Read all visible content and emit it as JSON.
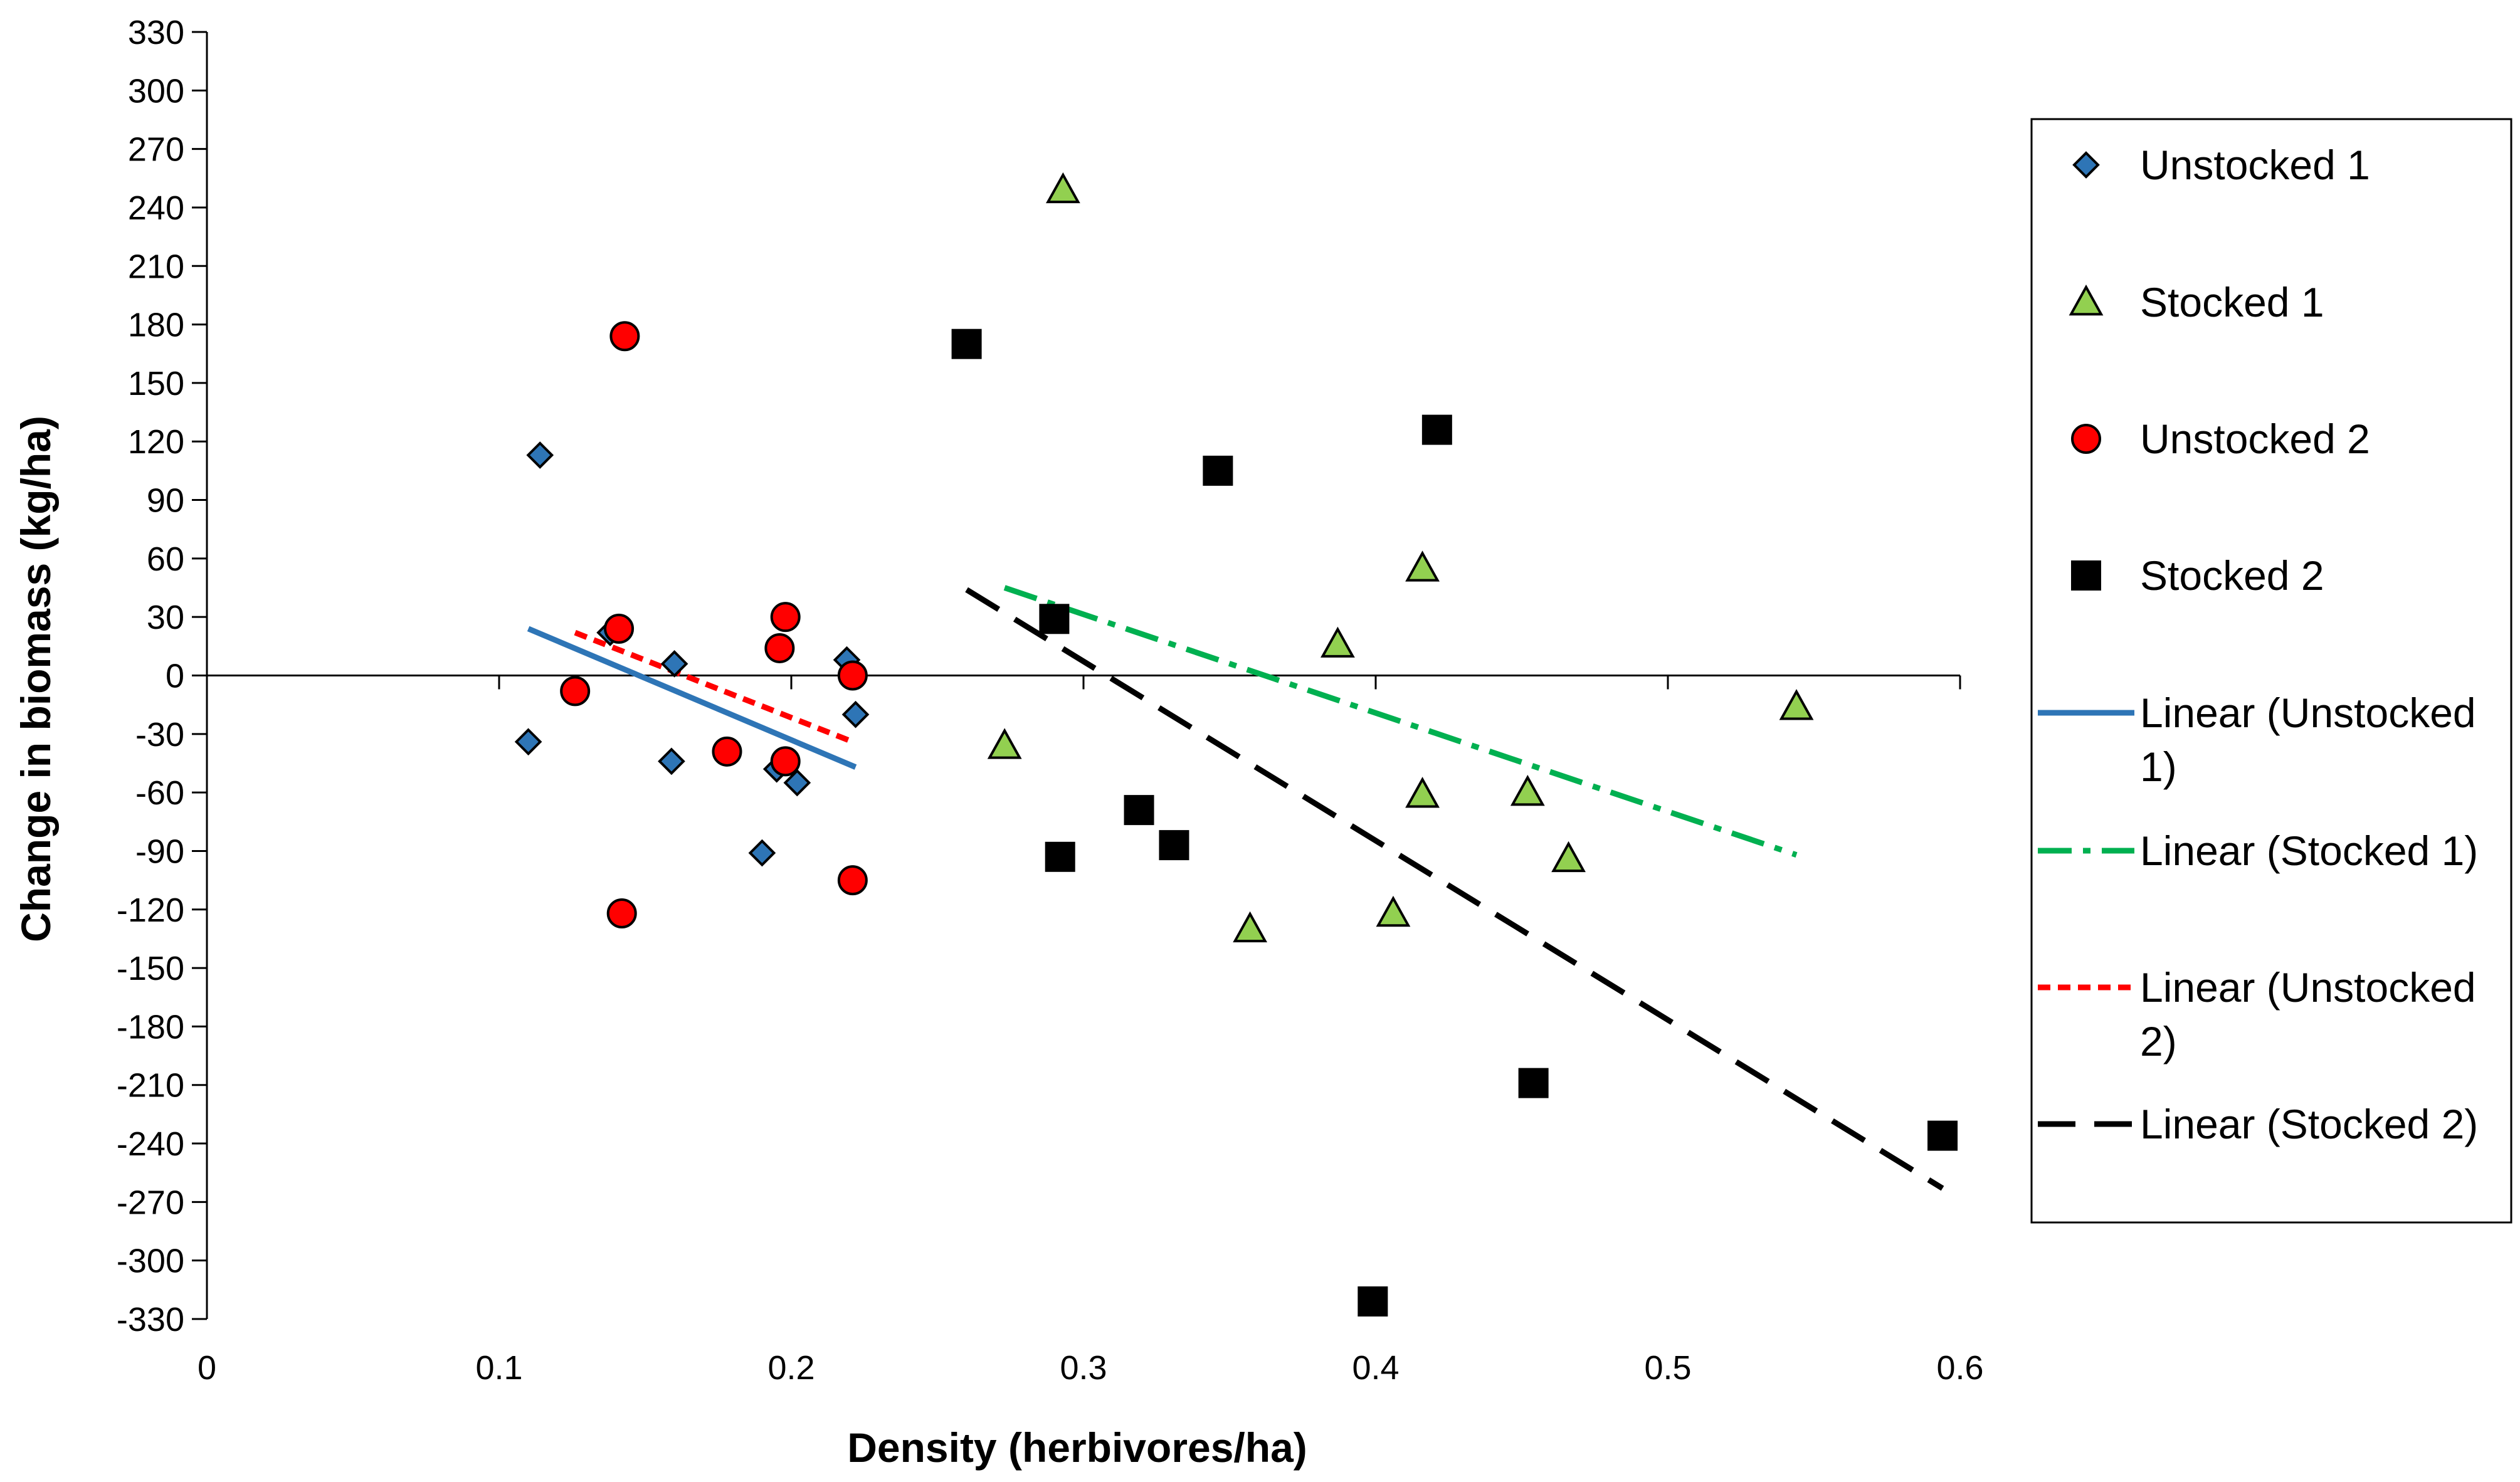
{
  "chart_data": {
    "type": "scatter",
    "title": "",
    "xlabel": "Density (herbivores/ha)",
    "ylabel": "Change in biomass (kg/ha)",
    "xlim": [
      0,
      0.6
    ],
    "ylim": [
      -330,
      330
    ],
    "x_ticks": [
      0,
      0.1,
      0.2,
      0.3,
      0.4,
      0.5,
      0.6
    ],
    "x_tick_labels": [
      "0",
      "0.1",
      "0.2",
      "0.3",
      "0.4",
      "0.5",
      "0.6"
    ],
    "y_ticks": [
      -330,
      -300,
      -270,
      -240,
      -210,
      -180,
      -150,
      -120,
      -90,
      -60,
      -30,
      0,
      30,
      60,
      90,
      120,
      150,
      180,
      210,
      240,
      270,
      300,
      330
    ],
    "y_tick_labels": [
      "-330",
      "-300",
      "-270",
      "-240",
      "-210",
      "-180",
      "-150",
      "-120",
      "-90",
      "-60",
      "-30",
      "0",
      "30",
      "60",
      "90",
      "120",
      "150",
      "180",
      "210",
      "240",
      "270",
      "300",
      "330"
    ],
    "grid": false,
    "legend_position": "right",
    "series": [
      {
        "name": "Unstocked 1",
        "marker": "diamond",
        "color": "#2E75B6",
        "points": [
          [
            0.114,
            113
          ],
          [
            0.11,
            -34
          ],
          [
            0.138,
            22
          ],
          [
            0.16,
            6
          ],
          [
            0.159,
            -44
          ],
          [
            0.19,
            -91
          ],
          [
            0.195,
            -48
          ],
          [
            0.202,
            -55
          ],
          [
            0.219,
            8
          ],
          [
            0.222,
            -20
          ]
        ]
      },
      {
        "name": "Stocked 1",
        "marker": "triangle",
        "color": "#92D050",
        "points": [
          [
            0.293,
            249
          ],
          [
            0.273,
            -36
          ],
          [
            0.357,
            -130
          ],
          [
            0.387,
            16
          ],
          [
            0.406,
            -122
          ],
          [
            0.416,
            55
          ],
          [
            0.416,
            -61
          ],
          [
            0.452,
            -60
          ],
          [
            0.466,
            -94
          ],
          [
            0.544,
            -16
          ]
        ]
      },
      {
        "name": "Unstocked 2",
        "marker": "circle",
        "color": "#FF0000",
        "points": [
          [
            0.143,
            174
          ],
          [
            0.141,
            24
          ],
          [
            0.126,
            -8
          ],
          [
            0.142,
            -122
          ],
          [
            0.178,
            -39
          ],
          [
            0.196,
            14
          ],
          [
            0.198,
            30
          ],
          [
            0.198,
            -44
          ],
          [
            0.221,
            0
          ],
          [
            0.221,
            -105
          ]
        ]
      },
      {
        "name": "Stocked 2",
        "marker": "square",
        "color": "#000000",
        "points": [
          [
            0.26,
            170
          ],
          [
            0.29,
            29
          ],
          [
            0.292,
            -93
          ],
          [
            0.319,
            -69
          ],
          [
            0.331,
            -87
          ],
          [
            0.346,
            105
          ],
          [
            0.399,
            -321
          ],
          [
            0.421,
            126
          ],
          [
            0.454,
            -209
          ],
          [
            0.594,
            -236
          ]
        ]
      }
    ],
    "trendlines": [
      {
        "name": "Linear (Unstocked 1)",
        "style": "solid",
        "color": "#2E75B6",
        "start": [
          0.11,
          24
        ],
        "end": [
          0.222,
          -47
        ]
      },
      {
        "name": "Linear (Stocked 1)",
        "style": "dashdot",
        "color": "#00B050",
        "start": [
          0.273,
          45
        ],
        "end": [
          0.544,
          -92
        ]
      },
      {
        "name": "Linear (Unstocked 2)",
        "style": "dotted",
        "color": "#FF0000",
        "start": [
          0.126,
          22
        ],
        "end": [
          0.221,
          -34
        ]
      },
      {
        "name": "Linear (Stocked 2)",
        "style": "longdash",
        "color": "#000000",
        "start": [
          0.26,
          44
        ],
        "end": [
          0.594,
          -263
        ]
      }
    ],
    "legend": [
      {
        "label": "Unstocked 1",
        "kind": "marker",
        "marker": "diamond",
        "color": "#2E75B6"
      },
      {
        "label": "Stocked 1",
        "kind": "marker",
        "marker": "triangle",
        "color": "#92D050"
      },
      {
        "label": "Unstocked 2",
        "kind": "marker",
        "marker": "circle",
        "color": "#FF0000"
      },
      {
        "label": "Stocked 2",
        "kind": "marker",
        "marker": "square",
        "color": "#000000"
      },
      {
        "label_lines": [
          "Linear (Unstocked",
          "1)"
        ],
        "kind": "line",
        "style": "solid",
        "color": "#2E75B6"
      },
      {
        "label_lines": [
          "Linear (Stocked 1)"
        ],
        "kind": "line",
        "style": "dashdot",
        "color": "#00B050"
      },
      {
        "label_lines": [
          "Linear (Unstocked",
          "2)"
        ],
        "kind": "line",
        "style": "dotted",
        "color": "#FF0000"
      },
      {
        "label_lines": [
          "Linear (Stocked 2)"
        ],
        "kind": "line",
        "style": "longdash",
        "color": "#000000"
      }
    ]
  }
}
